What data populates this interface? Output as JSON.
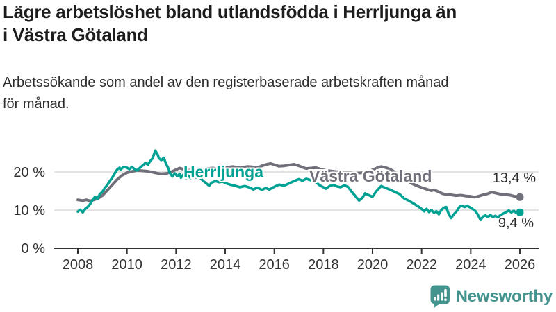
{
  "header": {
    "title_line1": "Lägre arbetslöshet bland utlandsfödda i Herrljunga än",
    "title_line2": "i Västra Götaland",
    "subtitle_line1": "Arbetssökande som andel av den registerbaserade arbetskraften månad",
    "subtitle_line2": "för månad."
  },
  "footer": {
    "brand": "Newsworthy"
  },
  "colors": {
    "herrljunga": "#00a294",
    "vastra_gotaland": "#70707a",
    "grid": "#dcdcdc",
    "axis": "#333333",
    "title_text": "#1d1d1d",
    "body_text": "#2d2d2d",
    "brand_teal": "#43948e"
  },
  "chart_data": {
    "type": "line",
    "unit": "%",
    "grid": true,
    "legend": "inline-labels",
    "ylim": [
      0,
      27
    ],
    "x_ticks": [
      2008,
      2010,
      2012,
      2014,
      2016,
      2018,
      2020,
      2022,
      2024,
      2026
    ],
    "y_ticks": [
      0,
      10,
      20
    ],
    "y_tick_labels": [
      "0 %",
      "10 %",
      "20 %"
    ],
    "series": [
      {
        "name": "Västra Götaland",
        "key": "vastra-gotaland",
        "color": "#70707a",
        "stroke_width": 4,
        "end_label": "13,4 %",
        "end_value": 13.4,
        "points": [
          [
            2008.0,
            12.7
          ],
          [
            2008.2,
            12.5
          ],
          [
            2008.35,
            12.7
          ],
          [
            2008.5,
            12.4
          ],
          [
            2008.65,
            12.7
          ],
          [
            2008.8,
            13.0
          ],
          [
            2009.0,
            13.8
          ],
          [
            2009.2,
            15.2
          ],
          [
            2009.4,
            16.6
          ],
          [
            2009.6,
            18.0
          ],
          [
            2009.8,
            19.1
          ],
          [
            2010.0,
            19.8
          ],
          [
            2010.2,
            20.1
          ],
          [
            2010.4,
            20.4
          ],
          [
            2010.6,
            20.3
          ],
          [
            2010.8,
            20.2
          ],
          [
            2011.0,
            20.0
          ],
          [
            2011.2,
            19.7
          ],
          [
            2011.4,
            19.5
          ],
          [
            2011.6,
            19.6
          ],
          [
            2011.8,
            20.0
          ],
          [
            2012.0,
            20.6
          ],
          [
            2012.15,
            21.0
          ],
          [
            2012.3,
            20.7
          ],
          [
            2012.5,
            20.4
          ],
          [
            2012.7,
            20.6
          ],
          [
            2012.9,
            20.5
          ],
          [
            2013.1,
            20.7
          ],
          [
            2013.3,
            20.9
          ],
          [
            2013.5,
            21.0
          ],
          [
            2013.7,
            20.8
          ],
          [
            2013.9,
            21.0
          ],
          [
            2014.1,
            21.2
          ],
          [
            2014.3,
            21.4
          ],
          [
            2014.5,
            21.1
          ],
          [
            2014.7,
            21.2
          ],
          [
            2014.9,
            21.4
          ],
          [
            2015.1,
            21.3
          ],
          [
            2015.3,
            21.1
          ],
          [
            2015.5,
            21.6
          ],
          [
            2015.7,
            22.0
          ],
          [
            2015.85,
            22.2
          ],
          [
            2016.0,
            21.9
          ],
          [
            2016.2,
            21.5
          ],
          [
            2016.4,
            21.6
          ],
          [
            2016.6,
            21.8
          ],
          [
            2016.8,
            22.0
          ],
          [
            2017.0,
            21.6
          ],
          [
            2017.15,
            21.2
          ],
          [
            2017.3,
            20.9
          ],
          [
            2017.5,
            21.0
          ],
          [
            2017.7,
            21.1
          ],
          [
            2017.9,
            20.7
          ],
          [
            2018.1,
            20.4
          ],
          [
            2018.35,
            20.2
          ],
          [
            2018.6,
            20.0
          ],
          [
            2018.85,
            19.9
          ],
          [
            2019.1,
            19.8
          ],
          [
            2019.35,
            19.7
          ],
          [
            2019.6,
            19.8
          ],
          [
            2019.85,
            20.1
          ],
          [
            2020.05,
            20.7
          ],
          [
            2020.2,
            21.1
          ],
          [
            2020.35,
            21.4
          ],
          [
            2020.5,
            21.2
          ],
          [
            2020.65,
            20.9
          ],
          [
            2020.8,
            20.4
          ],
          [
            2021.0,
            19.6
          ],
          [
            2021.2,
            18.7
          ],
          [
            2021.4,
            17.8
          ],
          [
            2021.6,
            17.0
          ],
          [
            2021.8,
            16.4
          ],
          [
            2022.0,
            15.9
          ],
          [
            2022.2,
            15.5
          ],
          [
            2022.4,
            15.1
          ],
          [
            2022.5,
            15.3
          ],
          [
            2022.7,
            14.8
          ],
          [
            2022.85,
            14.3
          ],
          [
            2023.0,
            14.1
          ],
          [
            2023.2,
            14.0
          ],
          [
            2023.4,
            13.8
          ],
          [
            2023.6,
            13.9
          ],
          [
            2023.8,
            13.7
          ],
          [
            2024.0,
            13.6
          ],
          [
            2024.15,
            13.4
          ],
          [
            2024.3,
            13.6
          ],
          [
            2024.5,
            14.0
          ],
          [
            2024.7,
            14.3
          ],
          [
            2024.85,
            14.7
          ],
          [
            2025.0,
            14.5
          ],
          [
            2025.2,
            14.2
          ],
          [
            2025.4,
            14.1
          ],
          [
            2025.6,
            13.9
          ],
          [
            2025.8,
            13.6
          ],
          [
            2026.0,
            13.4
          ]
        ]
      },
      {
        "name": "Herrljunga",
        "key": "herrljunga",
        "color": "#00a294",
        "stroke_width": 3.6,
        "end_label": "9,4 %",
        "end_value": 9.4,
        "points": [
          [
            2008.0,
            9.6
          ],
          [
            2008.1,
            10.1
          ],
          [
            2008.2,
            9.4
          ],
          [
            2008.3,
            10.3
          ],
          [
            2008.4,
            10.8
          ],
          [
            2008.5,
            11.6
          ],
          [
            2008.6,
            12.6
          ],
          [
            2008.7,
            13.5
          ],
          [
            2008.8,
            13.0
          ],
          [
            2008.9,
            14.2
          ],
          [
            2009.0,
            14.8
          ],
          [
            2009.1,
            15.8
          ],
          [
            2009.2,
            16.6
          ],
          [
            2009.3,
            17.6
          ],
          [
            2009.4,
            18.5
          ],
          [
            2009.5,
            19.6
          ],
          [
            2009.6,
            20.6
          ],
          [
            2009.7,
            21.1
          ],
          [
            2009.75,
            20.6
          ],
          [
            2009.85,
            21.3
          ],
          [
            2010.0,
            21.1
          ],
          [
            2010.1,
            20.7
          ],
          [
            2010.2,
            21.3
          ],
          [
            2010.3,
            20.8
          ],
          [
            2010.4,
            20.4
          ],
          [
            2010.5,
            20.9
          ],
          [
            2010.6,
            21.5
          ],
          [
            2010.7,
            22.0
          ],
          [
            2010.75,
            22.4
          ],
          [
            2010.85,
            21.9
          ],
          [
            2010.95,
            22.9
          ],
          [
            2011.05,
            23.6
          ],
          [
            2011.15,
            25.6
          ],
          [
            2011.25,
            24.6
          ],
          [
            2011.3,
            23.6
          ],
          [
            2011.4,
            23.1
          ],
          [
            2011.5,
            23.7
          ],
          [
            2011.6,
            22.0
          ],
          [
            2011.7,
            20.8
          ],
          [
            2011.75,
            19.7
          ],
          [
            2011.85,
            18.8
          ],
          [
            2011.95,
            19.6
          ],
          [
            2012.05,
            18.9
          ],
          [
            2012.15,
            19.5
          ],
          [
            2012.2,
            18.5
          ],
          [
            2012.3,
            19.3
          ],
          [
            2012.4,
            18.4
          ],
          [
            2012.5,
            19.0
          ],
          [
            2012.6,
            18.4
          ],
          [
            2012.7,
            19.0
          ],
          [
            2012.8,
            18.5
          ],
          [
            2012.9,
            18.9
          ],
          [
            2013.0,
            18.3
          ],
          [
            2013.1,
            17.7
          ],
          [
            2013.25,
            16.9
          ],
          [
            2013.35,
            16.4
          ],
          [
            2013.45,
            17.2
          ],
          [
            2013.6,
            17.6
          ],
          [
            2013.75,
            17.3
          ],
          [
            2013.9,
            17.5
          ],
          [
            2014.0,
            17.1
          ],
          [
            2014.2,
            16.7
          ],
          [
            2014.4,
            16.4
          ],
          [
            2014.6,
            16.0
          ],
          [
            2014.8,
            16.3
          ],
          [
            2015.0,
            15.9
          ],
          [
            2015.15,
            15.4
          ],
          [
            2015.3,
            15.9
          ],
          [
            2015.5,
            15.3
          ],
          [
            2015.65,
            15.8
          ],
          [
            2015.8,
            15.4
          ],
          [
            2016.0,
            16.1
          ],
          [
            2016.2,
            16.7
          ],
          [
            2016.4,
            16.4
          ],
          [
            2016.6,
            17.0
          ],
          [
            2016.8,
            17.6
          ],
          [
            2017.0,
            18.1
          ],
          [
            2017.15,
            17.7
          ],
          [
            2017.3,
            18.2
          ],
          [
            2017.5,
            17.8
          ],
          [
            2017.7,
            17.3
          ],
          [
            2017.85,
            16.5
          ],
          [
            2018.0,
            16.0
          ],
          [
            2018.1,
            15.6
          ],
          [
            2018.25,
            16.3
          ],
          [
            2018.4,
            16.6
          ],
          [
            2018.55,
            16.2
          ],
          [
            2018.7,
            16.0
          ],
          [
            2018.85,
            16.5
          ],
          [
            2019.0,
            16.1
          ],
          [
            2019.15,
            14.8
          ],
          [
            2019.3,
            13.7
          ],
          [
            2019.45,
            12.5
          ],
          [
            2019.6,
            13.3
          ],
          [
            2019.7,
            14.4
          ],
          [
            2019.85,
            13.9
          ],
          [
            2020.0,
            13.5
          ],
          [
            2020.15,
            14.9
          ],
          [
            2020.35,
            16.3
          ],
          [
            2020.5,
            15.9
          ],
          [
            2020.7,
            15.4
          ],
          [
            2020.9,
            14.8
          ],
          [
            2021.1,
            14.2
          ],
          [
            2021.3,
            13.0
          ],
          [
            2021.5,
            12.4
          ],
          [
            2021.7,
            11.6
          ],
          [
            2021.85,
            11.0
          ],
          [
            2022.0,
            10.3
          ],
          [
            2022.1,
            9.7
          ],
          [
            2022.2,
            10.3
          ],
          [
            2022.3,
            9.5
          ],
          [
            2022.4,
            10.0
          ],
          [
            2022.5,
            9.3
          ],
          [
            2022.6,
            9.7
          ],
          [
            2022.7,
            8.9
          ],
          [
            2022.8,
            10.0
          ],
          [
            2022.9,
            10.6
          ],
          [
            2023.0,
            10.8
          ],
          [
            2023.1,
            9.0
          ],
          [
            2023.2,
            7.9
          ],
          [
            2023.3,
            8.8
          ],
          [
            2023.45,
            9.9
          ],
          [
            2023.55,
            10.9
          ],
          [
            2023.65,
            11.1
          ],
          [
            2023.75,
            10.8
          ],
          [
            2023.85,
            11.1
          ],
          [
            2023.95,
            10.8
          ],
          [
            2024.05,
            10.4
          ],
          [
            2024.2,
            9.7
          ],
          [
            2024.3,
            8.7
          ],
          [
            2024.4,
            7.4
          ],
          [
            2024.5,
            8.3
          ],
          [
            2024.6,
            8.6
          ],
          [
            2024.7,
            8.2
          ],
          [
            2024.8,
            8.7
          ],
          [
            2024.9,
            8.2
          ],
          [
            2025.0,
            8.5
          ],
          [
            2025.1,
            8.1
          ],
          [
            2025.2,
            8.6
          ],
          [
            2025.3,
            9.0
          ],
          [
            2025.45,
            9.5
          ],
          [
            2025.55,
            9.9
          ],
          [
            2025.65,
            9.4
          ],
          [
            2025.75,
            9.8
          ],
          [
            2025.85,
            9.3
          ],
          [
            2025.95,
            9.8
          ],
          [
            2026.0,
            9.4
          ]
        ]
      }
    ]
  }
}
